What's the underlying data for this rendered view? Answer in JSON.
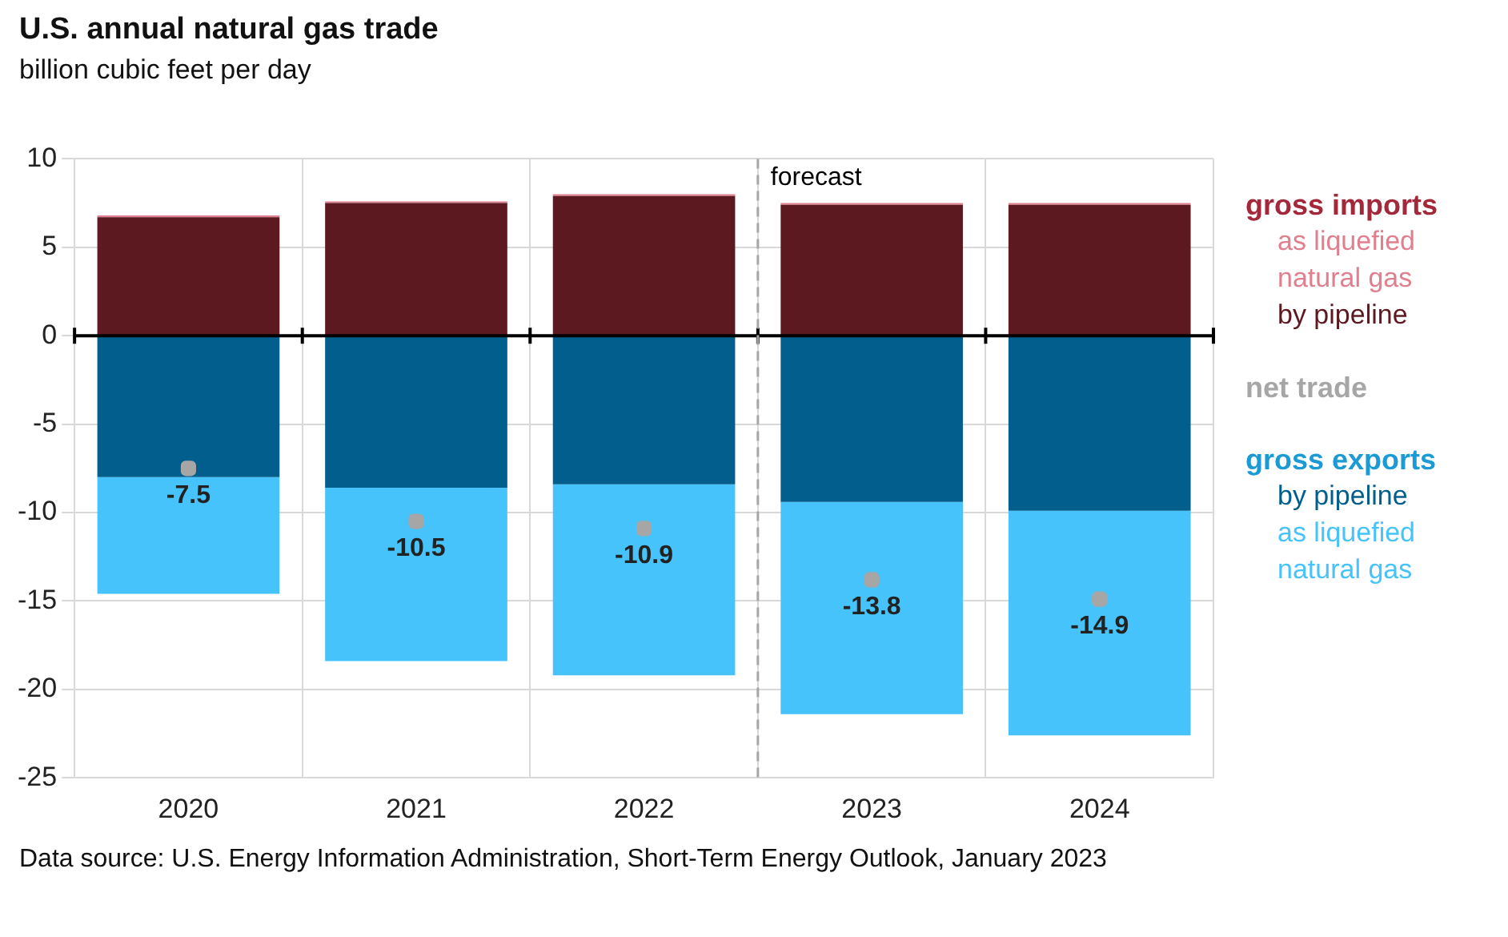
{
  "chart_data": {
    "type": "bar",
    "title": "U.S. annual natural gas trade",
    "subtitle": "billion cubic feet per day",
    "x": [
      2020,
      2021,
      2022,
      2023,
      2024
    ],
    "series": [
      {
        "name": "by pipeline",
        "color": "#5c1a20",
        "values": [
          6.7,
          7.5,
          7.9,
          7.4,
          7.4
        ]
      },
      {
        "name": "as liquefied natural gas",
        "color": "#e0808e",
        "values": [
          0.1,
          0.1,
          0.1,
          0.1,
          0.1
        ]
      },
      {
        "name": "by pipeline",
        "color": "#025e8c",
        "values": [
          -8.0,
          -8.6,
          -8.4,
          -9.4,
          -9.9
        ]
      },
      {
        "name": "as liquefied natural gas",
        "color": "#47c3fb",
        "values": [
          -6.6,
          -9.8,
          -10.8,
          -12.0,
          -12.7
        ]
      },
      {
        "name": "net trade",
        "type": "scatter",
        "color": "#a6a6a6",
        "values": [
          -7.5,
          -10.5,
          -10.9,
          -13.8,
          -14.9
        ],
        "value_labels": [
          "-7.5",
          "-10.5",
          "-10.9",
          "-13.8",
          "-14.9"
        ]
      }
    ],
    "stacked": true,
    "xlim": [
      2019.5,
      2024.5
    ],
    "xticks": [
      {
        "value": 2019.5,
        "label": null
      },
      2020,
      {
        "value": 2020.5,
        "label": null
      },
      2021,
      {
        "value": 2021.5,
        "label": null
      },
      2022,
      {
        "value": 2022.5,
        "label": null
      },
      2023,
      {
        "value": 2023.5,
        "label": null
      },
      2024,
      {
        "value": 2024.5,
        "label": null
      }
    ],
    "ylim": [
      -25,
      10
    ],
    "yticks": [
      -25,
      -20,
      -15,
      -10,
      -5,
      0,
      5,
      10
    ],
    "grid": true,
    "legend": "right",
    "marker": "square",
    "ref_lines": [
      {
        "axis": "x",
        "value": 2022.5,
        "label": "forecast",
        "line_style": "dashed",
        "color": "#a6a6a6"
      }
    ],
    "annotations": [
      "gross imports",
      "gross exports",
      "Data source: U.S. Energy Information Administration, Short-Term Energy Outlook, January 2023"
    ]
  }
}
